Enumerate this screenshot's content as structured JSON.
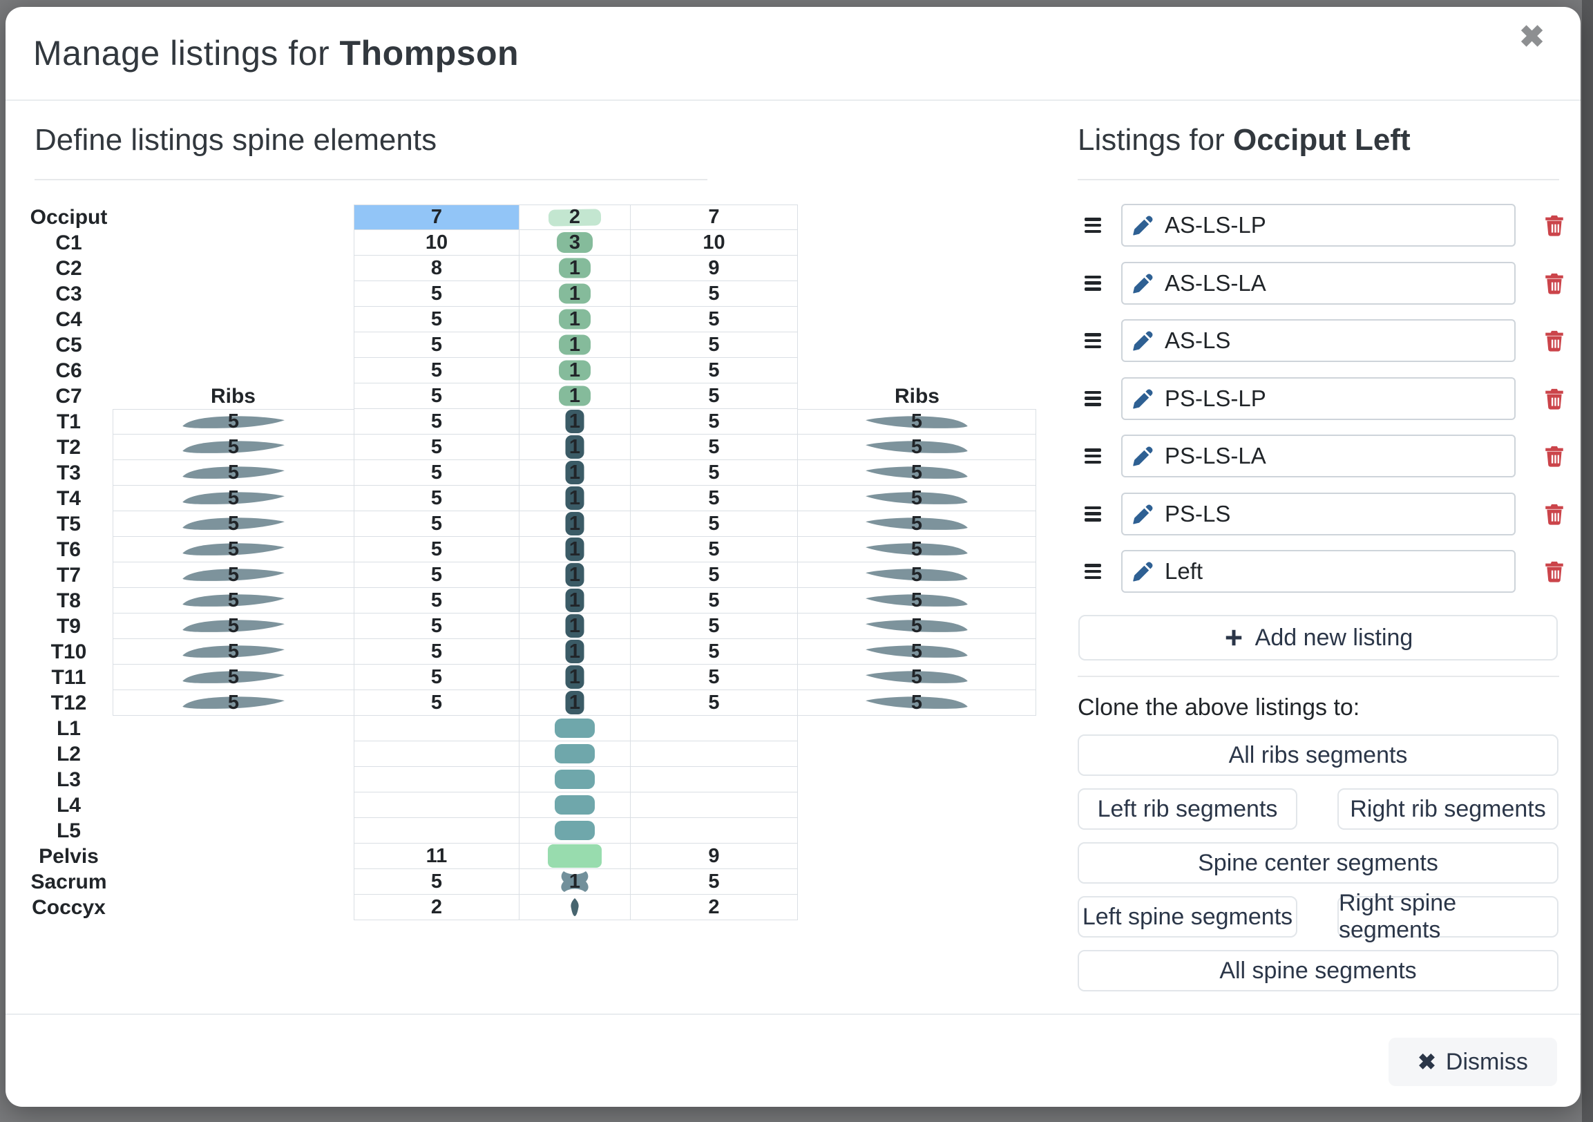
{
  "modal": {
    "title_prefix": "Manage listings for ",
    "title_name": "Thompson",
    "close_icon": "✖"
  },
  "left_section": {
    "heading": "Define listings spine elements",
    "ribs_header": "Ribs"
  },
  "spine": {
    "colors": {
      "highlight": "#92c5f7",
      "occiput": "#c3e6d0",
      "cervical": "#85bb9b",
      "thoracic": "#3b5b66",
      "lumbar": "#6fa7ab",
      "pelvis": "#98dcae",
      "sacrum": "#72909b",
      "coccyx": "#47656f",
      "rib": "#7d939c"
    },
    "rows": [
      {
        "label": "Occiput",
        "left": "7",
        "center": "2",
        "right": "7",
        "shape": "occiput",
        "highlight_left": true
      },
      {
        "label": "C1",
        "left": "10",
        "center": "3",
        "right": "10",
        "shape": "cervical_wide"
      },
      {
        "label": "C2",
        "left": "8",
        "center": "1",
        "right": "9",
        "shape": "cervical"
      },
      {
        "label": "C3",
        "left": "5",
        "center": "1",
        "right": "5",
        "shape": "cervical"
      },
      {
        "label": "C4",
        "left": "5",
        "center": "1",
        "right": "5",
        "shape": "cervical"
      },
      {
        "label": "C5",
        "left": "5",
        "center": "1",
        "right": "5",
        "shape": "cervical"
      },
      {
        "label": "C6",
        "left": "5",
        "center": "1",
        "right": "5",
        "shape": "cervical"
      },
      {
        "label": "C7",
        "left": "5",
        "center": "1",
        "right": "5",
        "shape": "cervical",
        "ribs_header": true
      },
      {
        "label": "T1",
        "left": "5",
        "center": "1",
        "right": "5",
        "ribs_left": "5",
        "ribs_right": "5",
        "shape": "thoracic",
        "first_t": true
      },
      {
        "label": "T2",
        "left": "5",
        "center": "1",
        "right": "5",
        "ribs_left": "5",
        "ribs_right": "5",
        "shape": "thoracic"
      },
      {
        "label": "T3",
        "left": "5",
        "center": "1",
        "right": "5",
        "ribs_left": "5",
        "ribs_right": "5",
        "shape": "thoracic"
      },
      {
        "label": "T4",
        "left": "5",
        "center": "1",
        "right": "5",
        "ribs_left": "5",
        "ribs_right": "5",
        "shape": "thoracic"
      },
      {
        "label": "T5",
        "left": "5",
        "center": "1",
        "right": "5",
        "ribs_left": "5",
        "ribs_right": "5",
        "shape": "thoracic"
      },
      {
        "label": "T6",
        "left": "5",
        "center": "1",
        "right": "5",
        "ribs_left": "5",
        "ribs_right": "5",
        "shape": "thoracic"
      },
      {
        "label": "T7",
        "left": "5",
        "center": "1",
        "right": "5",
        "ribs_left": "5",
        "ribs_right": "5",
        "shape": "thoracic"
      },
      {
        "label": "T8",
        "left": "5",
        "center": "1",
        "right": "5",
        "ribs_left": "5",
        "ribs_right": "5",
        "shape": "thoracic"
      },
      {
        "label": "T9",
        "left": "5",
        "center": "1",
        "right": "5",
        "ribs_left": "5",
        "ribs_right": "5",
        "shape": "thoracic"
      },
      {
        "label": "T10",
        "left": "5",
        "center": "1",
        "right": "5",
        "ribs_left": "5",
        "ribs_right": "5",
        "shape": "thoracic"
      },
      {
        "label": "T11",
        "left": "5",
        "center": "1",
        "right": "5",
        "ribs_left": "5",
        "ribs_right": "5",
        "shape": "thoracic"
      },
      {
        "label": "T12",
        "left": "5",
        "center": "1",
        "right": "5",
        "ribs_left": "5",
        "ribs_right": "5",
        "shape": "thoracic"
      },
      {
        "label": "L1",
        "left": "",
        "center": "",
        "right": "",
        "shape": "lumbar"
      },
      {
        "label": "L2",
        "left": "",
        "center": "",
        "right": "",
        "shape": "lumbar"
      },
      {
        "label": "L3",
        "left": "",
        "center": "",
        "right": "",
        "shape": "lumbar"
      },
      {
        "label": "L4",
        "left": "",
        "center": "",
        "right": "",
        "shape": "lumbar"
      },
      {
        "label": "L5",
        "left": "",
        "center": "",
        "right": "",
        "shape": "lumbar"
      },
      {
        "label": "Pelvis",
        "left": "11",
        "center": "",
        "right": "9",
        "shape": "pelvis"
      },
      {
        "label": "Sacrum",
        "left": "5",
        "center": "1",
        "right": "5",
        "shape": "sacrum"
      },
      {
        "label": "Coccyx",
        "left": "2",
        "center": "",
        "right": "2",
        "shape": "coccyx"
      }
    ]
  },
  "right_section": {
    "heading_prefix": "Listings for ",
    "heading_name": "Occiput Left",
    "listings": [
      "AS-LS-LP",
      "AS-LS-LA",
      "AS-LS",
      "PS-LS-LP",
      "PS-LS-LA",
      "PS-LS",
      "Left"
    ],
    "add_button_label": "Add new listing",
    "clone_label": "Clone the above listings to:",
    "clone_buttons": [
      {
        "label": "All ribs segments",
        "width": "full",
        "row": 1
      },
      {
        "label": "Left rib segments",
        "width": "half-left",
        "row": 2
      },
      {
        "label": "Right rib segments",
        "width": "half-right",
        "row": 2
      },
      {
        "label": "Spine center segments",
        "width": "full",
        "row": 3
      },
      {
        "label": "Left spine segments",
        "width": "half-left",
        "row": 4
      },
      {
        "label": "Right spine segments",
        "width": "half-right",
        "row": 4
      },
      {
        "label": "All spine segments",
        "width": "full",
        "row": 5
      }
    ]
  },
  "footer": {
    "dismiss_label": "Dismiss",
    "dismiss_icon": "✖"
  }
}
